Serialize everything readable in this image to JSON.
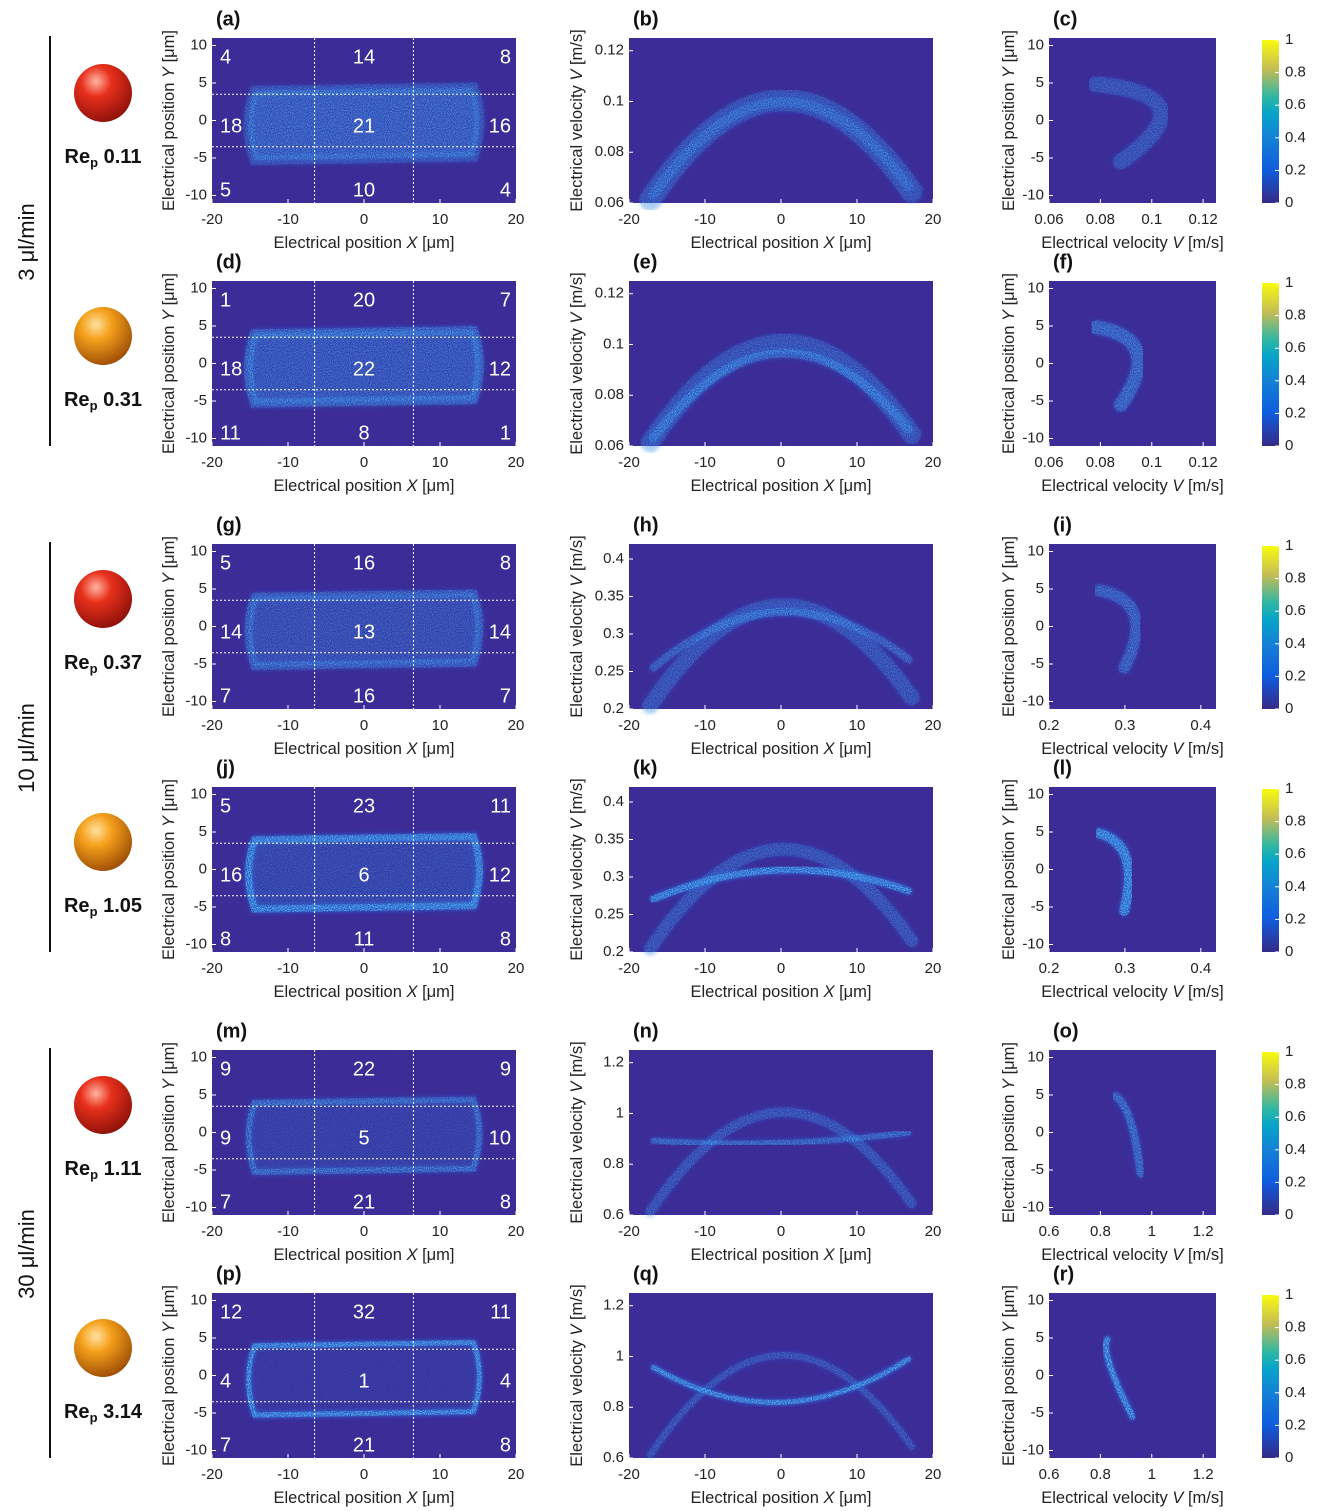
{
  "figure": {
    "groups": [
      {
        "flow_rate": "3 μl/min"
      },
      {
        "flow_rate": "10 μl/min"
      },
      {
        "flow_rate": "30 μl/min"
      }
    ],
    "re_label": {
      "main": "Re",
      "sub": "p"
    },
    "axis_labels": {
      "position_x": [
        "Electrical position ",
        "X",
        " [μm]"
      ],
      "position_y": [
        "Electrical position ",
        "Y",
        " [μm]"
      ],
      "velocity_x": [
        "Electrical velocity ",
        "V",
        " [m/s]"
      ],
      "velocity_y": [
        "Electrical velocity ",
        "V",
        " [m/s]"
      ]
    },
    "position_axes": {
      "xlim": [
        -20,
        20
      ],
      "xticks": [
        -20,
        -10,
        0,
        10,
        20
      ],
      "ylim": [
        -11,
        11
      ],
      "yticks": [
        -10,
        -5,
        0,
        5,
        10
      ]
    },
    "region_bounds_x": [
      -6.5,
      6.5
    ],
    "region_bounds_y": [
      3.5,
      -3.5
    ],
    "colorbar": {
      "lim": [
        0,
        1
      ],
      "ticks": [
        0,
        0.2,
        0.4,
        0.6,
        0.8,
        1
      ]
    },
    "rows": [
      {
        "re": "0.11",
        "particle_color": "#d8281a",
        "letters": [
          "(a)",
          "(b)",
          "(c)"
        ],
        "counts": [
          [
            4,
            14,
            8
          ],
          [
            18,
            21,
            16
          ],
          [
            5,
            10,
            4
          ]
        ],
        "velocity_lim": [
          0.06,
          0.125
        ],
        "velocity_ticks": [
          0.06,
          0.08,
          0.1,
          0.12
        ]
      },
      {
        "re": "0.31",
        "particle_color": "#f0900c",
        "letters": [
          "(d)",
          "(e)",
          "(f)"
        ],
        "counts": [
          [
            1,
            20,
            7
          ],
          [
            18,
            22,
            12
          ],
          [
            11,
            8,
            1
          ]
        ],
        "velocity_lim": [
          0.06,
          0.125
        ],
        "velocity_ticks": [
          0.06,
          0.08,
          0.1,
          0.12
        ]
      },
      {
        "re": "0.37",
        "particle_color": "#d8281a",
        "letters": [
          "(g)",
          "(h)",
          "(i)"
        ],
        "counts": [
          [
            5,
            16,
            8
          ],
          [
            14,
            13,
            14
          ],
          [
            7,
            16,
            7
          ]
        ],
        "velocity_lim": [
          0.2,
          0.42
        ],
        "velocity_ticks": [
          0.2,
          0.25,
          0.3,
          0.35,
          0.4
        ],
        "velocity_x_ticks": [
          0.2,
          0.3,
          0.4
        ]
      },
      {
        "re": "1.05",
        "particle_color": "#f0900c",
        "letters": [
          "(j)",
          "(k)",
          "(l)"
        ],
        "counts": [
          [
            5,
            23,
            11
          ],
          [
            16,
            6,
            12
          ],
          [
            8,
            11,
            8
          ]
        ],
        "velocity_lim": [
          0.2,
          0.42
        ],
        "velocity_ticks": [
          0.2,
          0.25,
          0.3,
          0.35,
          0.4
        ],
        "velocity_x_ticks": [
          0.2,
          0.3,
          0.4
        ]
      },
      {
        "re": "1.11",
        "particle_color": "#d8281a",
        "letters": [
          "(m)",
          "(n)",
          "(o)"
        ],
        "counts": [
          [
            9,
            22,
            9
          ],
          [
            9,
            5,
            10
          ],
          [
            7,
            21,
            8
          ]
        ],
        "velocity_lim": [
          0.6,
          1.25
        ],
        "velocity_ticks": [
          0.6,
          0.8,
          1,
          1.2
        ]
      },
      {
        "re": "3.14",
        "particle_color": "#f0900c",
        "letters": [
          "(p)",
          "(q)",
          "(r)"
        ],
        "counts": [
          [
            12,
            32,
            11
          ],
          [
            4,
            1,
            4
          ],
          [
            7,
            21,
            8
          ]
        ],
        "velocity_lim": [
          0.6,
          1.25
        ],
        "velocity_ticks": [
          0.6,
          0.8,
          1,
          1.2
        ]
      }
    ]
  }
}
